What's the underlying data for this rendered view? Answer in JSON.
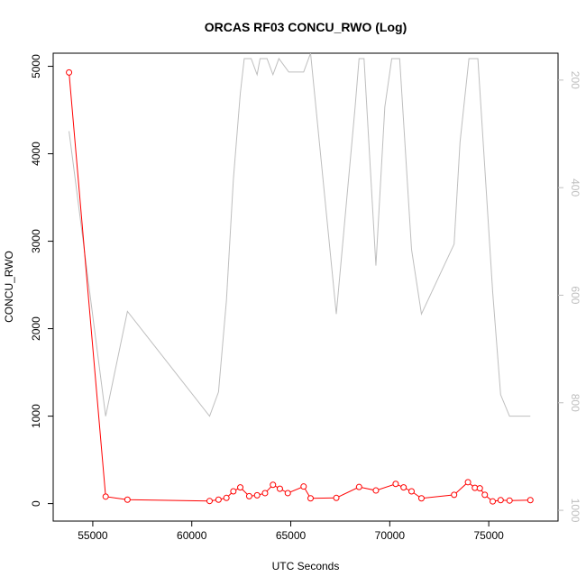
{
  "chart_data": {
    "type": "line",
    "title": "ORCAS RF03 CONCU_RWO (Log)",
    "xlabel": "UTC Seconds",
    "ylabel": "CONCU_RWO",
    "xlim": [
      53000,
      78500
    ],
    "ylim": [
      -200,
      5150
    ],
    "y2lim": [
      1020,
      150
    ],
    "xticks": [
      55000,
      60000,
      65000,
      70000,
      75000
    ],
    "yticks": [
      0,
      1000,
      2000,
      3000,
      4000,
      5000
    ],
    "y2ticks": [
      200,
      400,
      600,
      800,
      1000
    ],
    "grid": false,
    "colors": {
      "primary": "#ff0000",
      "secondary": "#bebebe",
      "axis": "#000000"
    },
    "series": [
      {
        "axis": "left",
        "marker": "open-circle",
        "x": [
          53800,
          55650,
          56750,
          60900,
          61350,
          61750,
          62100,
          62450,
          62900,
          63300,
          63700,
          64100,
          64450,
          64850,
          65650,
          66000,
          67300,
          68450,
          69300,
          70300,
          70700,
          71100,
          71600,
          73250,
          73950,
          74300,
          74550,
          74800,
          75200,
          75600,
          76050,
          77100
        ],
        "y": [
          4930,
          80,
          45,
          30,
          45,
          65,
          140,
          185,
          85,
          95,
          120,
          215,
          170,
          120,
          195,
          60,
          65,
          190,
          150,
          225,
          185,
          140,
          60,
          100,
          245,
          180,
          175,
          100,
          25,
          40,
          35,
          40
        ]
      },
      {
        "axis": "right",
        "x": [
          53800,
          55650,
          56750,
          60900,
          61350,
          61750,
          62100,
          62450,
          62650,
          63000,
          63300,
          63450,
          63800,
          64100,
          64400,
          64900,
          65650,
          66000,
          67300,
          68250,
          68450,
          68700,
          69300,
          69750,
          70100,
          70500,
          71100,
          71600,
          73250,
          73550,
          74000,
          74450,
          75200,
          75600,
          76050,
          77100
        ],
        "y": [
          295,
          825,
          630,
          825,
          780,
          610,
          385,
          225,
          160,
          160,
          190,
          160,
          160,
          190,
          160,
          185,
          185,
          150,
          635,
          250,
          160,
          160,
          545,
          250,
          160,
          160,
          515,
          635,
          505,
          315,
          160,
          160,
          595,
          785,
          825,
          825
        ]
      }
    ]
  }
}
